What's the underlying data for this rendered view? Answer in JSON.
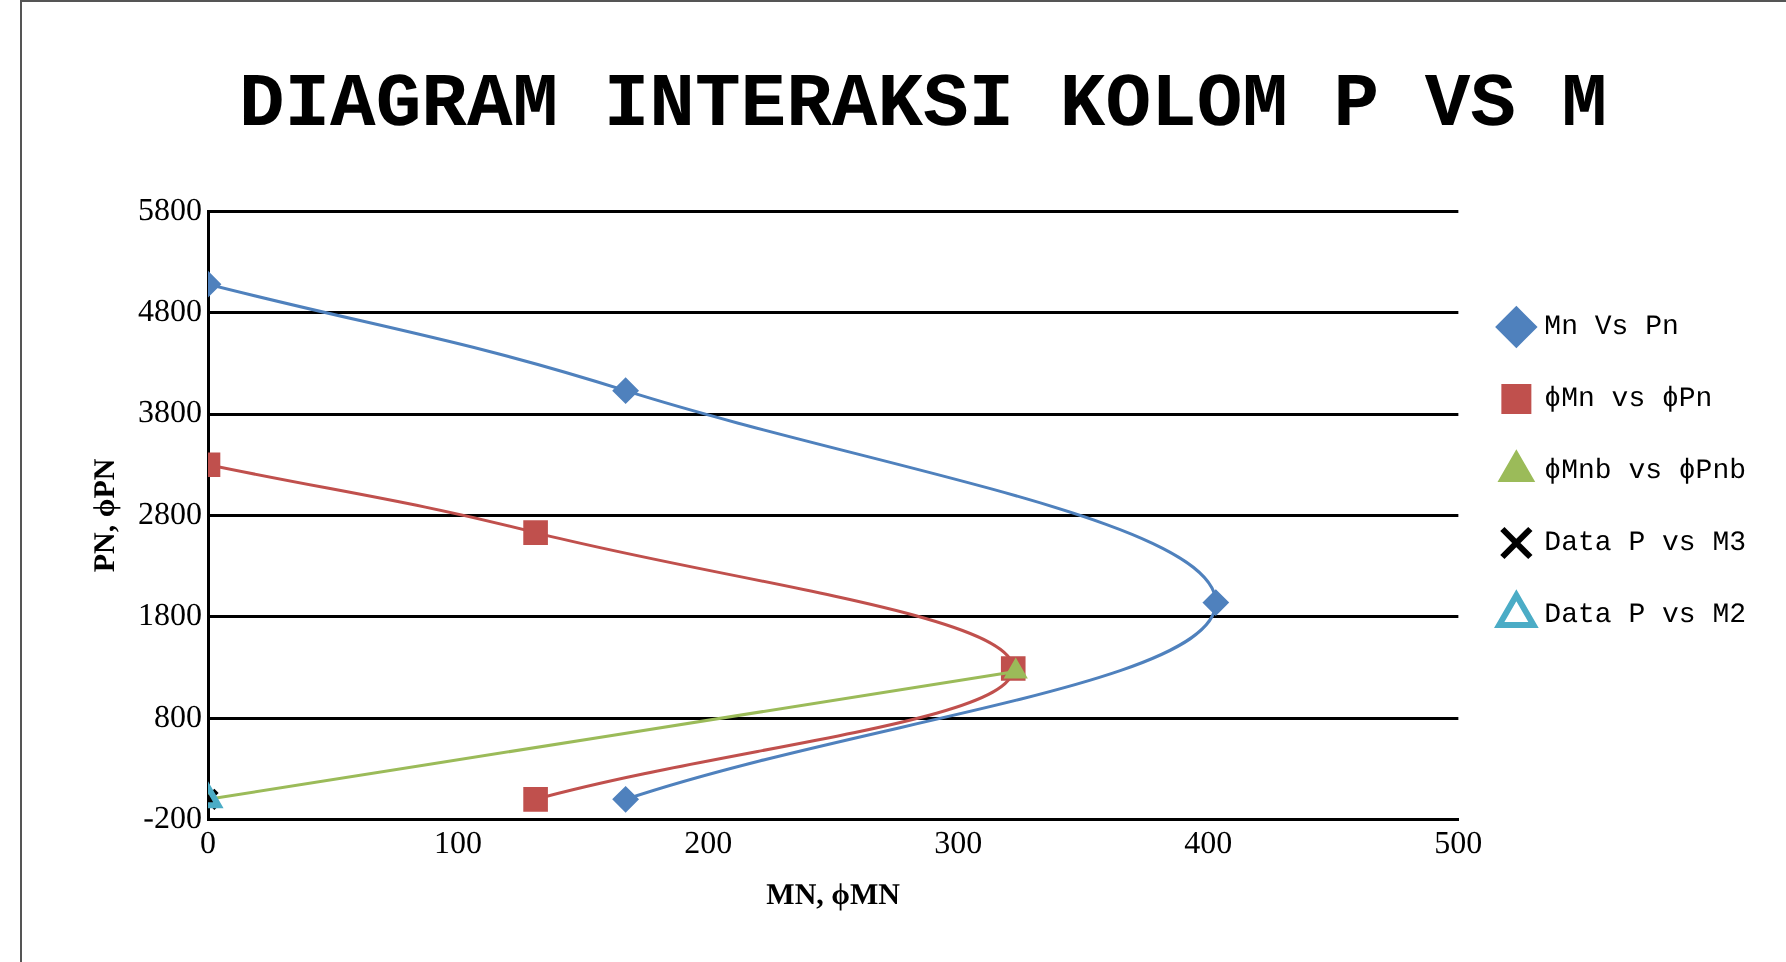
{
  "chart_data": {
    "type": "line",
    "title": "DIAGRAM INTERAKSI KOLOM P VS M",
    "xlabel": "MN, ϕMN",
    "ylabel": "PN, ϕPN",
    "xlim": [
      0,
      500
    ],
    "xticks": [
      0,
      100,
      200,
      300,
      400,
      500
    ],
    "ylim": [
      -200,
      5800
    ],
    "yticks": [
      -200,
      800,
      1800,
      2800,
      3800,
      4800,
      5800
    ],
    "grid": "y",
    "legend": "right",
    "series": [
      {
        "name": "Mn Vs Pn",
        "color": "#4f81bd",
        "marker": "diamond",
        "x": [
          0,
          167,
          403,
          167
        ],
        "values": [
          5080,
          4030,
          1940,
          0
        ]
      },
      {
        "name": "ϕMn vs ϕPn",
        "color": "#c0504d",
        "marker": "square",
        "x": [
          0,
          131,
          322,
          131
        ],
        "values": [
          3300,
          2630,
          1290,
          0
        ]
      },
      {
        "name": "ϕMnb vs ϕPnb",
        "color": "#9bbb59",
        "marker": "triangle",
        "x": [
          0,
          323
        ],
        "values": [
          0,
          1260
        ]
      },
      {
        "name": "Data P vs M3",
        "type": "scatter",
        "color": "#000000",
        "marker": "cross",
        "x": [
          0
        ],
        "values": [
          0
        ]
      },
      {
        "name": "Data P vs M2",
        "type": "scatter",
        "color": "#4bacc6",
        "marker": "triangle",
        "x": [
          0
        ],
        "values": [
          0
        ]
      }
    ]
  }
}
